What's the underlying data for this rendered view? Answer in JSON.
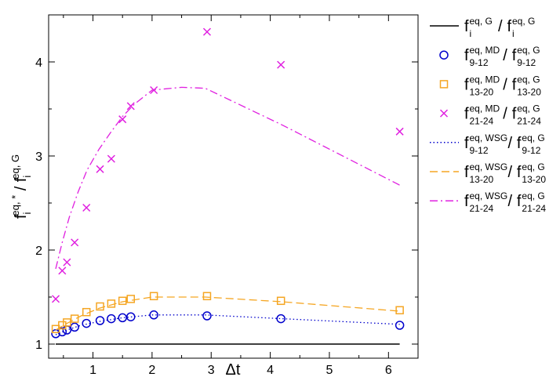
{
  "chart_data": {
    "type": "scatter",
    "xlabel": "Δt",
    "ylabel": {
      "base": "f",
      "sub": "i",
      "sup": "eq, *",
      "sep": " / ",
      "base2": "f",
      "sub2": "i",
      "sup2": "eq, G"
    },
    "xlim": [
      0.25,
      6.5
    ],
    "ylim": [
      0.85,
      4.5
    ],
    "xticks": [
      "1",
      "2",
      "3",
      "4",
      "5",
      "6"
    ],
    "xtick_values": [
      1,
      2,
      3,
      4,
      5,
      6
    ],
    "yticks": [
      "1",
      "2",
      "3",
      "4"
    ],
    "ytick_values": [
      1,
      2,
      3,
      4
    ],
    "legend_position": "right-outside",
    "series": [
      {
        "style": "line-solid",
        "color": "#000000",
        "label": {
          "num_sup": "eq, G",
          "num_sub": "i",
          "den_sup": "eq, G",
          "den_sub": "i"
        },
        "x": [
          0.37,
          6.19
        ],
        "y": [
          1.0,
          1.0
        ]
      },
      {
        "style": "circle",
        "color": "#0000cc",
        "label": {
          "num_sup": "eq, MD",
          "num_sub": "9-12",
          "den_sup": "eq, G",
          "den_sub": "9-12"
        },
        "x": [
          0.37,
          0.48,
          0.56,
          0.69,
          0.89,
          1.12,
          1.31,
          1.5,
          1.64,
          2.03,
          2.93,
          4.18,
          6.19
        ],
        "y": [
          1.11,
          1.13,
          1.15,
          1.18,
          1.22,
          1.25,
          1.27,
          1.28,
          1.29,
          1.31,
          1.3,
          1.27,
          1.2
        ]
      },
      {
        "style": "square",
        "color": "#f5a623",
        "label": {
          "num_sup": "eq, MD",
          "num_sub": "13-20",
          "den_sup": "eq, G",
          "den_sub": "13-20"
        },
        "x": [
          0.37,
          0.48,
          0.56,
          0.69,
          0.89,
          1.12,
          1.31,
          1.5,
          1.64,
          2.03,
          2.93,
          4.18,
          6.19
        ],
        "y": [
          1.16,
          1.2,
          1.23,
          1.27,
          1.34,
          1.4,
          1.43,
          1.46,
          1.48,
          1.51,
          1.51,
          1.46,
          1.36
        ]
      },
      {
        "style": "cross",
        "color": "#e020e0",
        "label": {
          "num_sup": "eq, MD",
          "num_sub": "21-24",
          "den_sup": "eq, G",
          "den_sub": "21-24"
        },
        "x": [
          0.37,
          0.48,
          0.56,
          0.69,
          0.89,
          1.12,
          1.31,
          1.5,
          1.64,
          2.03,
          2.93,
          4.18,
          6.19
        ],
        "y": [
          1.48,
          1.78,
          1.87,
          2.08,
          2.45,
          2.86,
          2.97,
          3.39,
          3.53,
          3.7,
          4.32,
          3.97,
          3.26
        ]
      },
      {
        "style": "line-dotted",
        "color": "#0000cc",
        "label": {
          "num_sup": "eq, WSG",
          "num_sub": "9-12",
          "den_sup": "eq, G",
          "den_sub": "9-12"
        },
        "x": [
          0.37,
          0.56,
          0.8,
          1.1,
          1.5,
          2.0,
          2.9,
          4.2,
          6.19
        ],
        "y": [
          1.1,
          1.15,
          1.2,
          1.24,
          1.28,
          1.31,
          1.31,
          1.27,
          1.21
        ]
      },
      {
        "style": "line-dashed",
        "color": "#f5a623",
        "label": {
          "num_sup": "eq, WSG",
          "num_sub": "13-20",
          "den_sup": "eq, G",
          "den_sub": "13-20"
        },
        "x": [
          0.37,
          0.56,
          0.8,
          1.1,
          1.5,
          2.0,
          2.9,
          4.2,
          6.19
        ],
        "y": [
          1.15,
          1.22,
          1.3,
          1.38,
          1.45,
          1.5,
          1.5,
          1.45,
          1.35
        ]
      },
      {
        "style": "line-dashdot",
        "color": "#e020e0",
        "label": {
          "num_sup": "eq, WSG",
          "num_sub": "21-24",
          "den_sup": "eq, G",
          "den_sub": "21-24"
        },
        "x": [
          0.37,
          0.48,
          0.6,
          0.75,
          0.9,
          1.1,
          1.3,
          1.5,
          1.7,
          2.0,
          2.5,
          2.9,
          4.2,
          6.19
        ],
        "y": [
          1.8,
          2.08,
          2.35,
          2.62,
          2.85,
          3.07,
          3.25,
          3.42,
          3.55,
          3.7,
          3.73,
          3.72,
          3.33,
          2.69
        ]
      }
    ]
  }
}
